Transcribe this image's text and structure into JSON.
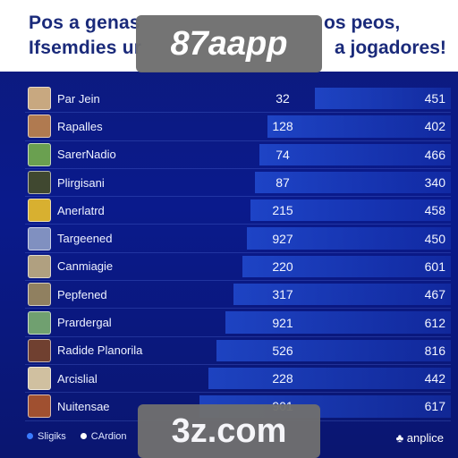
{
  "header": {
    "line1_left": "Pos a genas",
    "line1_right": "os peos,",
    "line2_left": "Ifsemdies ur",
    "line2_right": "a jogadores!",
    "brand_badge": "87aapp"
  },
  "rows": [
    {
      "name": "Par Jein",
      "score": "32",
      "players": "451",
      "bar": 0.32,
      "avatar_color": "#c8a880"
    },
    {
      "name": "Rapalles",
      "score": "128",
      "players": "402",
      "bar": 0.43,
      "avatar_color": "#b07a50"
    },
    {
      "name": "SarerNadio",
      "score": "74",
      "players": "466",
      "bar": 0.45,
      "avatar_color": "#6aa050"
    },
    {
      "name": "Plirgisani",
      "score": "87",
      "players": "340",
      "bar": 0.46,
      "avatar_color": "#404830"
    },
    {
      "name": "Anerlatrd",
      "score": "215",
      "players": "458",
      "bar": 0.47,
      "avatar_color": "#d8b030"
    },
    {
      "name": "Targeened",
      "score": "927",
      "players": "450",
      "bar": 0.48,
      "avatar_color": "#8090c0"
    },
    {
      "name": "Canmiagie",
      "score": "220",
      "players": "601",
      "bar": 0.49,
      "avatar_color": "#b0a080"
    },
    {
      "name": "Pepfened",
      "score": "317",
      "players": "467",
      "bar": 0.51,
      "avatar_color": "#908060"
    },
    {
      "name": "Prardergal",
      "score": "921",
      "players": "612",
      "bar": 0.53,
      "avatar_color": "#70a070"
    },
    {
      "name": "Radide Planorila",
      "score": "526",
      "players": "816",
      "bar": 0.55,
      "avatar_color": "#704030"
    },
    {
      "name": "Arcislial",
      "score": "228",
      "players": "442",
      "bar": 0.57,
      "avatar_color": "#d0c0a0"
    },
    {
      "name": "Nuitensae",
      "score": "901",
      "players": "617",
      "bar": 0.59,
      "avatar_color": "#a05030"
    }
  ],
  "footer": {
    "legend1": "Sligiks",
    "legend2": "CArdion",
    "legend1_color": "#3a7bff",
    "legend2_color": "#ffffff",
    "brand": "anplice",
    "brand_badge": "3z.com"
  }
}
